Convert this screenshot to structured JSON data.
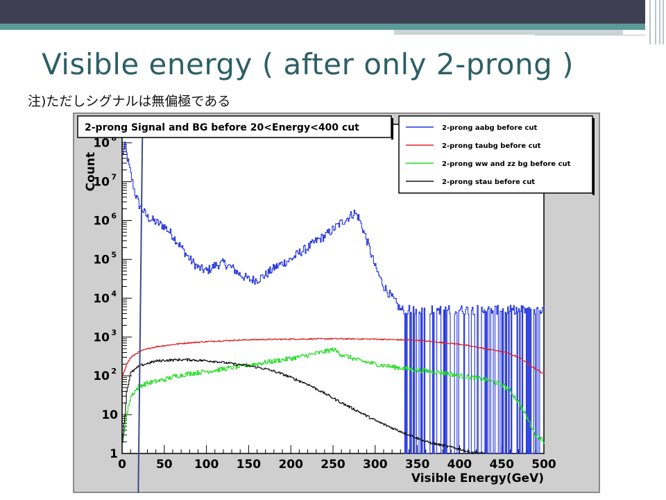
{
  "slide": {
    "title": "Visible energy ( after only 2-prong )",
    "note": "注)ただしシグナルは無偏極である"
  },
  "chart_data": {
    "type": "line",
    "title": "2-prong Signal and BG before 20<Energy<400 cut",
    "xlabel": "Visible Energy(GeV)",
    "ylabel": "Count",
    "xlim": [
      0,
      500
    ],
    "ylim": [
      1,
      300000000
    ],
    "y_scale": "log",
    "x_ticks": [
      "0",
      "50",
      "100",
      "150",
      "200",
      "250",
      "300",
      "350",
      "400",
      "450",
      "500"
    ],
    "y_ticks": [
      {
        "base": "1",
        "exp": ""
      },
      {
        "base": "10",
        "exp": ""
      },
      {
        "base": "10",
        "exp": "2"
      },
      {
        "base": "10",
        "exp": "3"
      },
      {
        "base": "10",
        "exp": "4"
      },
      {
        "base": "10",
        "exp": "5"
      },
      {
        "base": "10",
        "exp": "6"
      },
      {
        "base": "10",
        "exp": "7"
      },
      {
        "base": "10",
        "exp": "8"
      }
    ],
    "grid": false,
    "legend_position": "top-right",
    "annotation_line_x": 20,
    "series": [
      {
        "name": "2-prong aabg before cut",
        "color": "#2233dd",
        "x": [
          0,
          3,
          6,
          10,
          15,
          20,
          30,
          40,
          50,
          60,
          70,
          80,
          90,
          100,
          110,
          120,
          130,
          140,
          150,
          160,
          170,
          180,
          190,
          200,
          210,
          220,
          230,
          240,
          250,
          260,
          270,
          275,
          280,
          290,
          300,
          310,
          320,
          330,
          340,
          350,
          360,
          370,
          380,
          390,
          400,
          410,
          420,
          430,
          440,
          450,
          460,
          470,
          480,
          490,
          500
        ],
        "y": [
          50000000,
          80000000,
          40000000,
          15000000,
          5000000,
          2500000,
          1200000,
          900000,
          700000,
          400000,
          200000,
          100000,
          60000,
          50000,
          70000,
          80000,
          60000,
          40000,
          30000,
          30000,
          40000,
          60000,
          80000,
          100000,
          150000,
          200000,
          300000,
          400000,
          600000,
          900000,
          1300000,
          1600000,
          1200000,
          300000,
          60000,
          20000,
          10000,
          5000,
          5000,
          5000,
          5000,
          5000,
          5000,
          5000,
          5000,
          5000,
          5000,
          5000,
          5000,
          5000,
          5000,
          5000,
          5000,
          5000,
          5000
        ]
      },
      {
        "name": "2-prong taubg before cut",
        "color": "#e02020",
        "x": [
          0,
          5,
          10,
          20,
          30,
          40,
          50,
          60,
          70,
          80,
          100,
          120,
          150,
          200,
          250,
          300,
          350,
          400,
          450,
          470,
          490,
          500
        ],
        "y": [
          100,
          200,
          300,
          420,
          500,
          560,
          600,
          640,
          680,
          710,
          760,
          800,
          850,
          880,
          900,
          880,
          820,
          650,
          420,
          300,
          150,
          110
        ]
      },
      {
        "name": "2-prong ww and zz bg before cut",
        "color": "#22dd22",
        "x": [
          0,
          5,
          10,
          20,
          30,
          40,
          50,
          60,
          80,
          100,
          120,
          150,
          180,
          200,
          220,
          240,
          250,
          260,
          280,
          300,
          320,
          340,
          350,
          380,
          400,
          430,
          450,
          460,
          470,
          480,
          490,
          500
        ],
        "y": [
          2,
          10,
          30,
          55,
          65,
          72,
          80,
          95,
          115,
          130,
          150,
          190,
          240,
          280,
          340,
          420,
          480,
          350,
          250,
          200,
          170,
          150,
          140,
          120,
          100,
          80,
          60,
          40,
          20,
          8,
          3,
          2
        ]
      },
      {
        "name": "2-prong stau before cut",
        "color": "#111111",
        "x": [
          0,
          3,
          5,
          10,
          20,
          30,
          40,
          50,
          60,
          70,
          80,
          90,
          100,
          110,
          120,
          130,
          140,
          150,
          160,
          170,
          180,
          190,
          200,
          220,
          240,
          260,
          280,
          300,
          320,
          340,
          360,
          380,
          400,
          410,
          420,
          430
        ],
        "y": [
          2,
          10,
          40,
          120,
          180,
          210,
          240,
          250,
          255,
          260,
          258,
          250,
          245,
          235,
          220,
          205,
          190,
          180,
          165,
          150,
          130,
          110,
          90,
          60,
          35,
          20,
          12,
          7,
          4.5,
          3,
          2,
          1.6,
          1.3,
          1.1,
          1.05,
          1
        ]
      }
    ]
  }
}
